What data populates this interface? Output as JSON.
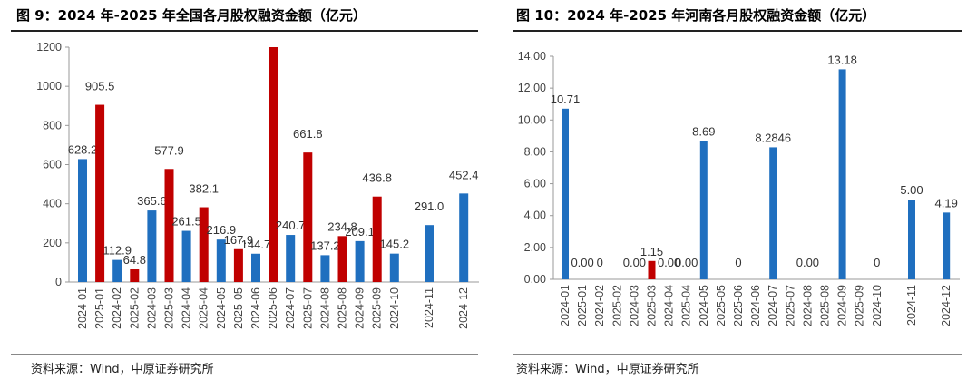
{
  "charts": [
    {
      "title": "图 9：2024 年-2025 年全国各月股权融资金额（亿元）",
      "source": "资料来源：Wind，中原证券研究所",
      "chart_data": {
        "type": "bar",
        "title": "图 9：2024 年-2025 年全国各月股权融资金额（亿元）",
        "ylim": [
          0,
          1200
        ],
        "yticks": [
          "0",
          "200",
          "400",
          "600",
          "800",
          "1000",
          "1200"
        ],
        "ytick_values": [
          0,
          200,
          400,
          600,
          800,
          1000,
          1200
        ],
        "grid": false,
        "legend": "none",
        "categories": [
          "2024-01",
          "2025-01",
          "2024-02",
          "2025-02",
          "2024-03",
          "2025-03",
          "2024-04",
          "2025-04",
          "2024-05",
          "2025-05",
          "2024-06",
          "2025-06",
          "2024-07",
          "2025-07",
          "2024-08",
          "2025-08",
          "2024-09",
          "2025-09",
          "2024-10",
          "2024-11",
          "2024-12"
        ],
        "values": [
          628.2,
          905.5,
          112.9,
          64.8,
          365.6,
          577.9,
          261.5,
          382.1,
          216.9,
          167.9,
          144.7,
          1200,
          240.7,
          661.8,
          137.2,
          234.8,
          209.1,
          436.8,
          145.2,
          291.0,
          452.4
        ],
        "labels": [
          "628.2",
          "905.5",
          "112.9",
          "64.8",
          "365.6",
          "577.9",
          "261.5",
          "382.1",
          "216.9",
          "167.9",
          "144.7",
          "",
          "240.7",
          "661.8",
          "137.2",
          "234.8",
          "209.1",
          "436.8",
          "145.2",
          "291.0",
          "452.4"
        ],
        "colors": [
          "#1f6fbf",
          "#c00000",
          "#1f6fbf",
          "#c00000",
          "#1f6fbf",
          "#c00000",
          "#1f6fbf",
          "#c00000",
          "#1f6fbf",
          "#c00000",
          "#1f6fbf",
          "#c00000",
          "#1f6fbf",
          "#c00000",
          "#1f6fbf",
          "#c00000",
          "#1f6fbf",
          "#c00000",
          "#1f6fbf",
          "#1f6fbf",
          "#1f6fbf"
        ],
        "slots": [
          0,
          1,
          2,
          3,
          4,
          5,
          6,
          7,
          8,
          9,
          10,
          11,
          12,
          13,
          14,
          15,
          16,
          17,
          18,
          20,
          22
        ],
        "label_above": [
          true,
          false,
          true,
          true,
          true,
          false,
          true,
          false,
          true,
          true,
          true,
          true,
          true,
          false,
          true,
          true,
          true,
          false,
          true,
          false,
          false
        ],
        "series_colors": {
          "2024": "#1f6fbf",
          "2025": "#c00000"
        }
      }
    },
    {
      "title": "图 10：2024 年-2025 年河南各月股权融资金额（亿元）",
      "source": "资料来源：Wind，中原证券研究所",
      "chart_data": {
        "type": "bar",
        "title": "图 10：2024 年-2025 年河南各月股权融资金额（亿元）",
        "ylim": [
          0,
          14
        ],
        "yticks": [
          "0.00",
          "2.00",
          "4.00",
          "6.00",
          "8.00",
          "10.00",
          "12.00",
          "14.00"
        ],
        "ytick_values": [
          0,
          2,
          4,
          6,
          8,
          10,
          12,
          14
        ],
        "grid": false,
        "legend": "none",
        "categories": [
          "2024-01",
          "2025-01",
          "2024-02",
          "2025-02",
          "2024-03",
          "2025-03",
          "2024-04",
          "2025-04",
          "2024-05",
          "2025-05",
          "2025-06",
          "2024-06",
          "2024-07",
          "2025-07",
          "2024-08",
          "2025-08",
          "2024-09",
          "2025-09",
          "2024-10",
          "2024-11",
          "2024-12"
        ],
        "values": [
          10.71,
          0.0,
          0,
          0,
          0.0,
          1.15,
          0.0,
          0.0,
          8.69,
          0,
          0,
          0,
          8.2846,
          0,
          0.0,
          0,
          13.18,
          0,
          0,
          5.0,
          4.19
        ],
        "labels": [
          "10.71",
          "0.00",
          "0",
          "",
          "0.00",
          "1.15",
          "0.00",
          "0.00",
          "8.69",
          "",
          "0",
          "",
          "8.2846",
          "",
          "0.00",
          "",
          "13.18",
          "",
          "0",
          "5.00",
          "4.19"
        ],
        "colors": [
          "#1f6fbf",
          "#c00000",
          "#1f6fbf",
          "#c00000",
          "#1f6fbf",
          "#c00000",
          "#1f6fbf",
          "#c00000",
          "#1f6fbf",
          "#c00000",
          "#c00000",
          "#1f6fbf",
          "#1f6fbf",
          "#c00000",
          "#1f6fbf",
          "#c00000",
          "#1f6fbf",
          "#c00000",
          "#1f6fbf",
          "#1f6fbf",
          "#1f6fbf"
        ],
        "slots": [
          0,
          1,
          2,
          3,
          4,
          5,
          6,
          7,
          8,
          9,
          10,
          11,
          12,
          13,
          14,
          15,
          16,
          17,
          18,
          20,
          22
        ],
        "series_colors": {
          "2024": "#1f6fbf",
          "2025": "#c00000"
        }
      }
    }
  ]
}
